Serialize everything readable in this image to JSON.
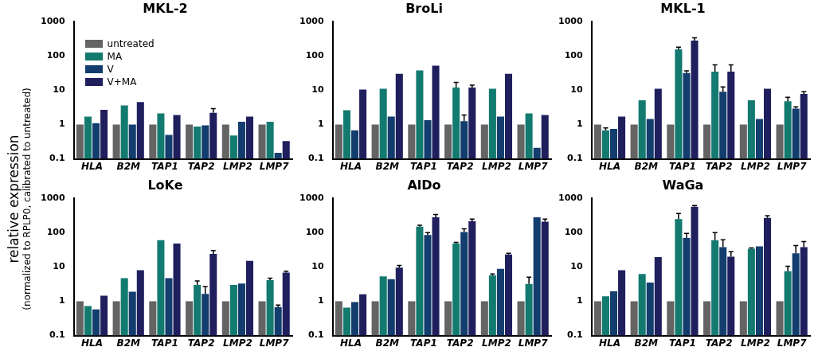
{
  "chart_data": [
    {
      "type": "bar",
      "title": "MKL-2",
      "ylabel": "relative expression\n(normalized to RPLP0, calibrated to untreated)",
      "log": true,
      "ylim": [
        0.1,
        1000
      ],
      "yticks": [
        0.1,
        1,
        10,
        100,
        1000
      ],
      "legend": "top left",
      "categories": [
        "HLA",
        "B2M",
        "TAP1",
        "TAP2",
        "LMP2",
        "LMP7"
      ],
      "series": [
        {
          "name": "untreated",
          "color": "#646464",
          "values": [
            1,
            1,
            1,
            1,
            1,
            1
          ]
        },
        {
          "name": "MA",
          "color": "#137a70",
          "values": [
            1.7,
            3.6,
            2.1,
            0.88,
            0.48,
            1.2
          ]
        },
        {
          "name": "V",
          "color": "#133d6e",
          "values": [
            1.1,
            1.0,
            0.5,
            0.95,
            1.2,
            0.15
          ]
        },
        {
          "name": "V+MA",
          "color": "#1f1f5e",
          "values": [
            2.7,
            4.5,
            1.9,
            2.2,
            1.7,
            0.33
          ],
          "errors": [
            null,
            null,
            null,
            [
              2.2,
              2.9
            ],
            null,
            null
          ]
        }
      ]
    },
    {
      "type": "bar",
      "title": "BroLi",
      "log": true,
      "ylim": [
        0.1,
        1000
      ],
      "yticks": [
        0.1,
        1,
        10,
        100,
        1000
      ],
      "categories": [
        "HLA",
        "B2M",
        "TAP1",
        "TAP2",
        "LMP2",
        "LMP7"
      ],
      "series": [
        {
          "color": "#646464",
          "values": [
            1,
            1,
            1,
            1,
            1,
            1
          ]
        },
        {
          "color": "#137a70",
          "values": [
            2.6,
            11,
            38,
            12,
            11,
            2.1
          ],
          "errors": [
            null,
            null,
            null,
            [
              12,
              17
            ],
            null,
            null
          ]
        },
        {
          "color": "#133d6e",
          "values": [
            0.68,
            1.7,
            1.35,
            1.25,
            1.7,
            0.21
          ],
          "errors": [
            null,
            null,
            null,
            [
              1.25,
              1.9
            ],
            null,
            null
          ]
        },
        {
          "color": "#1f1f5e",
          "values": [
            10.5,
            30,
            52,
            12,
            30,
            1.9
          ],
          "errors": [
            null,
            null,
            null,
            [
              12,
              14
            ],
            null,
            null
          ]
        }
      ]
    },
    {
      "type": "bar",
      "title": "MKL-1",
      "log": true,
      "ylim": [
        0.1,
        1000
      ],
      "yticks": [
        0.1,
        1,
        10,
        100,
        1000
      ],
      "categories": [
        "HLA",
        "B2M",
        "TAP1",
        "TAP2",
        "LMP2",
        "LMP7"
      ],
      "series": [
        {
          "color": "#646464",
          "values": [
            1,
            1,
            1,
            1,
            1,
            1
          ]
        },
        {
          "color": "#137a70",
          "values": [
            0.68,
            5.1,
            155,
            35,
            5.1,
            4.8
          ],
          "errors": [
            [
              0.68,
              0.8
            ],
            null,
            [
              155,
              180
            ],
            [
              35,
              55
            ],
            null,
            [
              4.8,
              6.2
            ]
          ]
        },
        {
          "color": "#133d6e",
          "values": [
            0.75,
            1.45,
            32,
            9,
            1.45,
            2.9
          ],
          "errors": [
            null,
            null,
            [
              32,
              37
            ],
            [
              9,
              12.5
            ],
            null,
            [
              2.9,
              3.3
            ]
          ]
        },
        {
          "color": "#1f1f5e",
          "values": [
            1.7,
            11,
            280,
            35,
            11,
            7.8
          ],
          "errors": [
            null,
            null,
            [
              280,
              340
            ],
            [
              35,
              55
            ],
            null,
            [
              7.8,
              9
            ]
          ]
        }
      ]
    },
    {
      "type": "bar",
      "title": "LoKe",
      "log": true,
      "ylim": [
        0.1,
        1000
      ],
      "yticks": [
        0.1,
        1,
        10,
        100,
        1000
      ],
      "categories": [
        "HLA",
        "B2M",
        "TAP1",
        "TAP2",
        "LMP2",
        "LMP7"
      ],
      "series": [
        {
          "color": "#646464",
          "values": [
            1,
            1,
            1,
            1,
            1,
            1
          ]
        },
        {
          "color": "#137a70",
          "values": [
            0.73,
            4.7,
            60,
            3,
            3,
            4.1
          ],
          "errors": [
            null,
            null,
            null,
            [
              3,
              3.9
            ],
            null,
            [
              4.1,
              4.7
            ]
          ]
        },
        {
          "color": "#133d6e",
          "values": [
            0.58,
            1.9,
            4.7,
            1.65,
            3.3,
            0.68
          ],
          "errors": [
            null,
            null,
            null,
            [
              1.65,
              2.7
            ],
            null,
            [
              0.68,
              0.78
            ]
          ]
        },
        {
          "color": "#1f1f5e",
          "values": [
            1.45,
            8,
            48,
            24,
            15,
            6.8
          ],
          "errors": [
            null,
            null,
            null,
            [
              24,
              30
            ],
            null,
            [
              6.8,
              7.5
            ]
          ]
        }
      ]
    },
    {
      "type": "bar",
      "title": "AlDo",
      "log": true,
      "ylim": [
        0.1,
        1000
      ],
      "yticks": [
        0.1,
        1,
        10,
        100,
        1000
      ],
      "categories": [
        "HLA",
        "B2M",
        "TAP1",
        "TAP2",
        "LMP2",
        "LMP7"
      ],
      "series": [
        {
          "color": "#646464",
          "values": [
            1,
            1,
            1,
            1,
            1,
            1
          ]
        },
        {
          "color": "#137a70",
          "values": [
            0.65,
            5.3,
            150,
            48,
            5.7,
            3.2
          ],
          "errors": [
            null,
            null,
            [
              150,
              165
            ],
            [
              48,
              52
            ],
            [
              5.7,
              6.2
            ],
            [
              3.2,
              5
            ]
          ]
        },
        {
          "color": "#133d6e",
          "values": [
            0.95,
            4.4,
            85,
            105,
            8.8,
            280
          ],
          "errors": [
            null,
            null,
            [
              85,
              100
            ],
            [
              105,
              130
            ],
            null,
            null
          ]
        },
        {
          "color": "#1f1f5e",
          "values": [
            1.6,
            9.5,
            280,
            215,
            23,
            210
          ],
          "errors": [
            null,
            [
              9.5,
              11
            ],
            [
              280,
              340
            ],
            [
              215,
              250
            ],
            [
              23,
              25
            ],
            [
              210,
              250
            ]
          ]
        }
      ]
    },
    {
      "type": "bar",
      "title": "WaGa",
      "log": true,
      "ylim": [
        0.1,
        1000
      ],
      "yticks": [
        0.1,
        1,
        10,
        100,
        1000
      ],
      "categories": [
        "HLA",
        "B2M",
        "TAP1",
        "TAP2",
        "LMP2",
        "LMP7"
      ],
      "series": [
        {
          "color": "#646464",
          "values": [
            1,
            1,
            1,
            1,
            1,
            1
          ]
        },
        {
          "color": "#137a70",
          "values": [
            1.4,
            6.2,
            250,
            60,
            34,
            7.5
          ],
          "errors": [
            null,
            null,
            [
              250,
              360
            ],
            [
              60,
              100
            ],
            [
              34,
              36
            ],
            [
              7.5,
              10.5
            ]
          ]
        },
        {
          "color": "#133d6e",
          "values": [
            1.95,
            3.5,
            70,
            38,
            40,
            25
          ],
          "errors": [
            null,
            null,
            [
              70,
              95
            ],
            [
              38,
              62
            ],
            null,
            [
              25,
              42
            ]
          ]
        },
        {
          "color": "#1f1f5e",
          "values": [
            8,
            19.5,
            570,
            20,
            270,
            38
          ],
          "errors": [
            null,
            null,
            [
              570,
              620
            ],
            [
              20,
              28
            ],
            [
              270,
              310
            ],
            [
              38,
              55
            ]
          ]
        }
      ]
    }
  ]
}
